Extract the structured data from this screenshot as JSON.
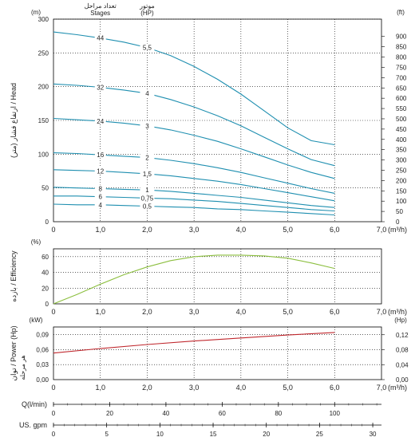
{
  "chart_data": [
    {
      "type": "line",
      "ylabel": "ارتفاع فشار (متر) / Head",
      "x_unit": "(m³/h)",
      "y_unit_left": "(m)",
      "y_unit_right": "(ft)",
      "xlim": [
        0,
        7
      ],
      "ylim": [
        0,
        300
      ],
      "x_ticks": [
        "0",
        "1,0",
        "2,0",
        "3,0",
        "4,0",
        "5,0",
        "6,0",
        "7,0"
      ],
      "y_ticks": [
        "0",
        "50",
        "100",
        "150",
        "200",
        "250",
        "300"
      ],
      "y_ticks_right": [
        "0",
        "50",
        "100",
        "150",
        "200",
        "250",
        "300",
        "350",
        "400",
        "450",
        "500",
        "550",
        "600",
        "650",
        "700",
        "750",
        "800",
        "850",
        "900"
      ],
      "stages_header": "تعداد مراحل",
      "stages_header_en": "Stages",
      "motor_header": "موتور",
      "motor_header_en": "(HP)",
      "series": [
        {
          "stages": "44",
          "hp": "5,5",
          "color": "#1f8fb0",
          "x": [
            0,
            0.5,
            1,
            1.5,
            2,
            2.5,
            3,
            3.5,
            4,
            4.5,
            5,
            5.5,
            6
          ],
          "y": [
            281,
            277,
            272,
            266,
            258,
            246,
            230,
            211,
            189,
            164,
            139,
            120,
            114
          ]
        },
        {
          "stages": "32",
          "hp": "4",
          "color": "#1f8fb0",
          "x": [
            0,
            0.5,
            1,
            1.5,
            2,
            2.5,
            3,
            3.5,
            4,
            4.5,
            5,
            5.5,
            6
          ],
          "y": [
            204,
            202,
            199,
            195,
            190,
            181,
            170,
            157,
            142,
            125,
            108,
            92,
            83
          ]
        },
        {
          "stages": "24",
          "hp": "3",
          "color": "#1f8fb0",
          "x": [
            0,
            0.5,
            1,
            1.5,
            2,
            2.5,
            3,
            3.5,
            4,
            4.5,
            5,
            5.5,
            6
          ],
          "y": [
            153,
            151,
            149,
            146,
            142,
            136,
            128,
            119,
            108,
            96,
            84,
            73,
            64
          ]
        },
        {
          "stages": "16",
          "hp": "2",
          "color": "#1f8fb0",
          "x": [
            0,
            0.5,
            1,
            1.5,
            2,
            2.5,
            3,
            3.5,
            4,
            4.5,
            5,
            5.5,
            6
          ],
          "y": [
            102,
            101,
            99,
            97,
            95,
            91,
            86,
            80,
            73,
            65,
            57,
            49,
            42
          ]
        },
        {
          "stages": "12",
          "hp": "1,5",
          "color": "#1f8fb0",
          "x": [
            0,
            0.5,
            1,
            1.5,
            2,
            2.5,
            3,
            3.5,
            4,
            4.5,
            5,
            5.5,
            6
          ],
          "y": [
            77,
            76,
            75,
            73,
            71,
            68,
            64,
            60,
            55,
            49,
            43,
            37,
            31
          ]
        },
        {
          "stages": "8",
          "hp": "1",
          "color": "#1f8fb0",
          "x": [
            0,
            0.5,
            1,
            1.5,
            2,
            2.5,
            3,
            3.5,
            4,
            4.5,
            5,
            5.5,
            6
          ],
          "y": [
            51,
            50,
            49,
            48,
            47,
            45,
            42,
            39,
            36,
            32,
            28,
            24,
            21
          ]
        },
        {
          "stages": "6",
          "hp": "0,75",
          "color": "#1f8fb0",
          "x": [
            0,
            0.5,
            1,
            1.5,
            2,
            2.5,
            3,
            3.5,
            4,
            4.5,
            5,
            5.5,
            6
          ],
          "y": [
            38,
            38,
            37,
            36,
            35,
            34,
            32,
            30,
            27,
            24,
            21,
            18,
            16
          ]
        },
        {
          "stages": "4",
          "hp": "0,5",
          "color": "#1f8fb0",
          "x": [
            0,
            0.5,
            1,
            1.5,
            2,
            2.5,
            3,
            3.5,
            4,
            4.5,
            5,
            5.5,
            6
          ],
          "y": [
            26,
            25,
            25,
            24,
            23,
            22,
            21,
            19,
            18,
            16,
            14,
            12,
            10
          ]
        }
      ]
    },
    {
      "type": "line",
      "ylabel": "بازده / Efficiency",
      "x_unit": "(m³/h)",
      "y_unit_left": "(%)",
      "xlim": [
        0,
        7
      ],
      "ylim": [
        0,
        70
      ],
      "x_ticks": [
        "0",
        "1,0",
        "2,0",
        "3,0",
        "4,0",
        "5,0",
        "6,0",
        "7,0"
      ],
      "y_ticks": [
        "0",
        "20",
        "40",
        "60"
      ],
      "series": [
        {
          "color": "#8cbf3f",
          "x": [
            0,
            0.5,
            1,
            1.5,
            2,
            2.5,
            3,
            3.5,
            4,
            4.5,
            5,
            5.5,
            6
          ],
          "y": [
            0,
            12,
            25,
            37,
            47,
            55,
            60,
            62,
            62,
            61,
            58,
            52,
            45
          ]
        }
      ]
    },
    {
      "type": "line",
      "ylabel": "توان / Power (Hp)",
      "ylabel_sub": "هر مرحله",
      "x_unit": "(m³/h)",
      "y_unit_left": "(kW)",
      "y_unit_right": "(Hp)",
      "xlim": [
        0,
        7
      ],
      "ylim": [
        0,
        0.105
      ],
      "x_ticks": [
        "0",
        "1,0",
        "2,0",
        "3,0",
        "4,0",
        "5,0",
        "6,0",
        "7,0"
      ],
      "y_ticks": [
        "0,00",
        "0,03",
        "0,06",
        "0,09"
      ],
      "y_ticks_right": [
        "0,00",
        "0,04",
        "0,08",
        "0,12"
      ],
      "series": [
        {
          "color": "#c0272d",
          "x": [
            0,
            1,
            2,
            3,
            4,
            5,
            6
          ],
          "y": [
            0.053,
            0.062,
            0.07,
            0.077,
            0.083,
            0.089,
            0.094
          ]
        }
      ]
    }
  ],
  "q_scale": {
    "label": "Q(l/min)",
    "max": 116.67,
    "ticks": [
      "0",
      "20",
      "40",
      "60",
      "80",
      "100"
    ]
  },
  "gpm_scale": {
    "label": "US. gpm",
    "max": 30.82,
    "ticks": [
      "0",
      "5",
      "10",
      "15",
      "20",
      "25",
      "30"
    ]
  }
}
